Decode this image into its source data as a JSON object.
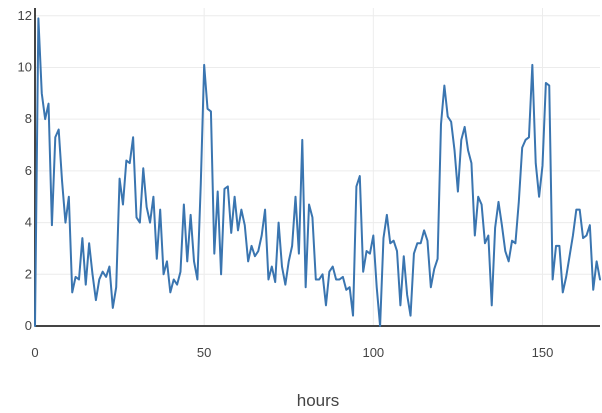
{
  "chart_data": {
    "type": "line",
    "xlabel": "hours",
    "ylabel": "",
    "title": "",
    "xlim": [
      0,
      167
    ],
    "ylim": [
      0,
      12.3
    ],
    "x_ticks": [
      0,
      50,
      100,
      150
    ],
    "y_ticks": [
      0,
      2,
      4,
      6,
      8,
      10,
      12
    ],
    "grid": true,
    "legend": "none",
    "colors": {
      "line": "#3a75b0",
      "grid": "#ececec",
      "zero_line": "#444444",
      "tick_text": "#444444"
    },
    "series": [
      {
        "x": [
          0,
          1,
          2,
          3,
          4,
          5,
          6,
          7,
          8,
          9,
          10,
          11,
          12,
          13,
          14,
          15,
          16,
          17,
          18,
          19,
          20,
          21,
          22,
          23,
          24,
          25,
          26,
          27,
          28,
          29,
          30,
          31,
          32,
          33,
          34,
          35,
          36,
          37,
          38,
          39,
          40,
          41,
          42,
          43,
          44,
          45,
          46,
          47,
          48,
          49,
          50,
          51,
          52,
          53,
          54,
          55,
          56,
          57,
          58,
          59,
          60,
          61,
          62,
          63,
          64,
          65,
          66,
          67,
          68,
          69,
          70,
          71,
          72,
          73,
          74,
          75,
          76,
          77,
          78,
          79,
          80,
          81,
          82,
          83,
          84,
          85,
          86,
          87,
          88,
          89,
          90,
          91,
          92,
          93,
          94,
          95,
          96,
          97,
          98,
          99,
          100,
          101,
          102,
          103,
          104,
          105,
          106,
          107,
          108,
          109,
          110,
          111,
          112,
          113,
          114,
          115,
          116,
          117,
          118,
          119,
          120,
          121,
          122,
          123,
          124,
          125,
          126,
          127,
          128,
          129,
          130,
          131,
          132,
          133,
          134,
          135,
          136,
          137,
          138,
          139,
          140,
          141,
          142,
          143,
          144,
          145,
          146,
          147,
          148,
          149,
          150,
          151,
          152,
          153,
          154,
          155,
          156,
          157,
          158,
          159,
          160,
          161,
          162,
          163,
          164,
          165,
          166,
          167
        ],
        "values": [
          0,
          11.9,
          9,
          8,
          8.6,
          3.9,
          7.3,
          7.6,
          5.6,
          4,
          5,
          1.3,
          1.9,
          1.8,
          3.4,
          1.6,
          3.2,
          2,
          1,
          1.8,
          2.1,
          1.9,
          2.3,
          0.7,
          1.5,
          5.7,
          4.7,
          6.4,
          6.3,
          7.3,
          4.2,
          4,
          6.1,
          4.6,
          4,
          5,
          2.6,
          4.5,
          2,
          2.5,
          1.3,
          1.8,
          1.6,
          2.1,
          4.7,
          2.5,
          4.3,
          2.5,
          1.8,
          5.5,
          10.1,
          8.4,
          8.3,
          2.8,
          5.2,
          2,
          5.3,
          5.4,
          3.6,
          5,
          3.7,
          4.5,
          3.9,
          2.5,
          3.1,
          2.7,
          2.9,
          3.5,
          4.5,
          1.8,
          2.3,
          1.7,
          4,
          2.3,
          1.6,
          2.5,
          3.1,
          5,
          2.8,
          7.2,
          1.5,
          4.7,
          4.2,
          1.8,
          1.8,
          2,
          0.8,
          2.1,
          2.3,
          1.8,
          1.8,
          1.9,
          1.4,
          1.5,
          0.4,
          5.4,
          5.8,
          2.1,
          2.9,
          2.8,
          3.5,
          1.5,
          0,
          3.4,
          4.3,
          3.2,
          3.3,
          2.9,
          0.8,
          2.7,
          1.2,
          0.4,
          2.8,
          3.2,
          3.2,
          3.7,
          3.3,
          1.5,
          2.2,
          2.6,
          7.8,
          9.3,
          8.1,
          7.9,
          6.8,
          5.2,
          7.2,
          7.7,
          6.8,
          6.3,
          3.5,
          5,
          4.7,
          3.2,
          3.5,
          0.8,
          3.8,
          4.8,
          3.9,
          2.9,
          2.5,
          3.3,
          3.2,
          4.8,
          6.9,
          7.2,
          7.3,
          10.1,
          6.3,
          5,
          6.2,
          9.4,
          9.3,
          1.8,
          3.1,
          3.1,
          1.3,
          1.9,
          2.7,
          3.5,
          4.5,
          4.5,
          3.4,
          3.5,
          3.9,
          1.4,
          2.5,
          1.8
        ]
      }
    ]
  }
}
